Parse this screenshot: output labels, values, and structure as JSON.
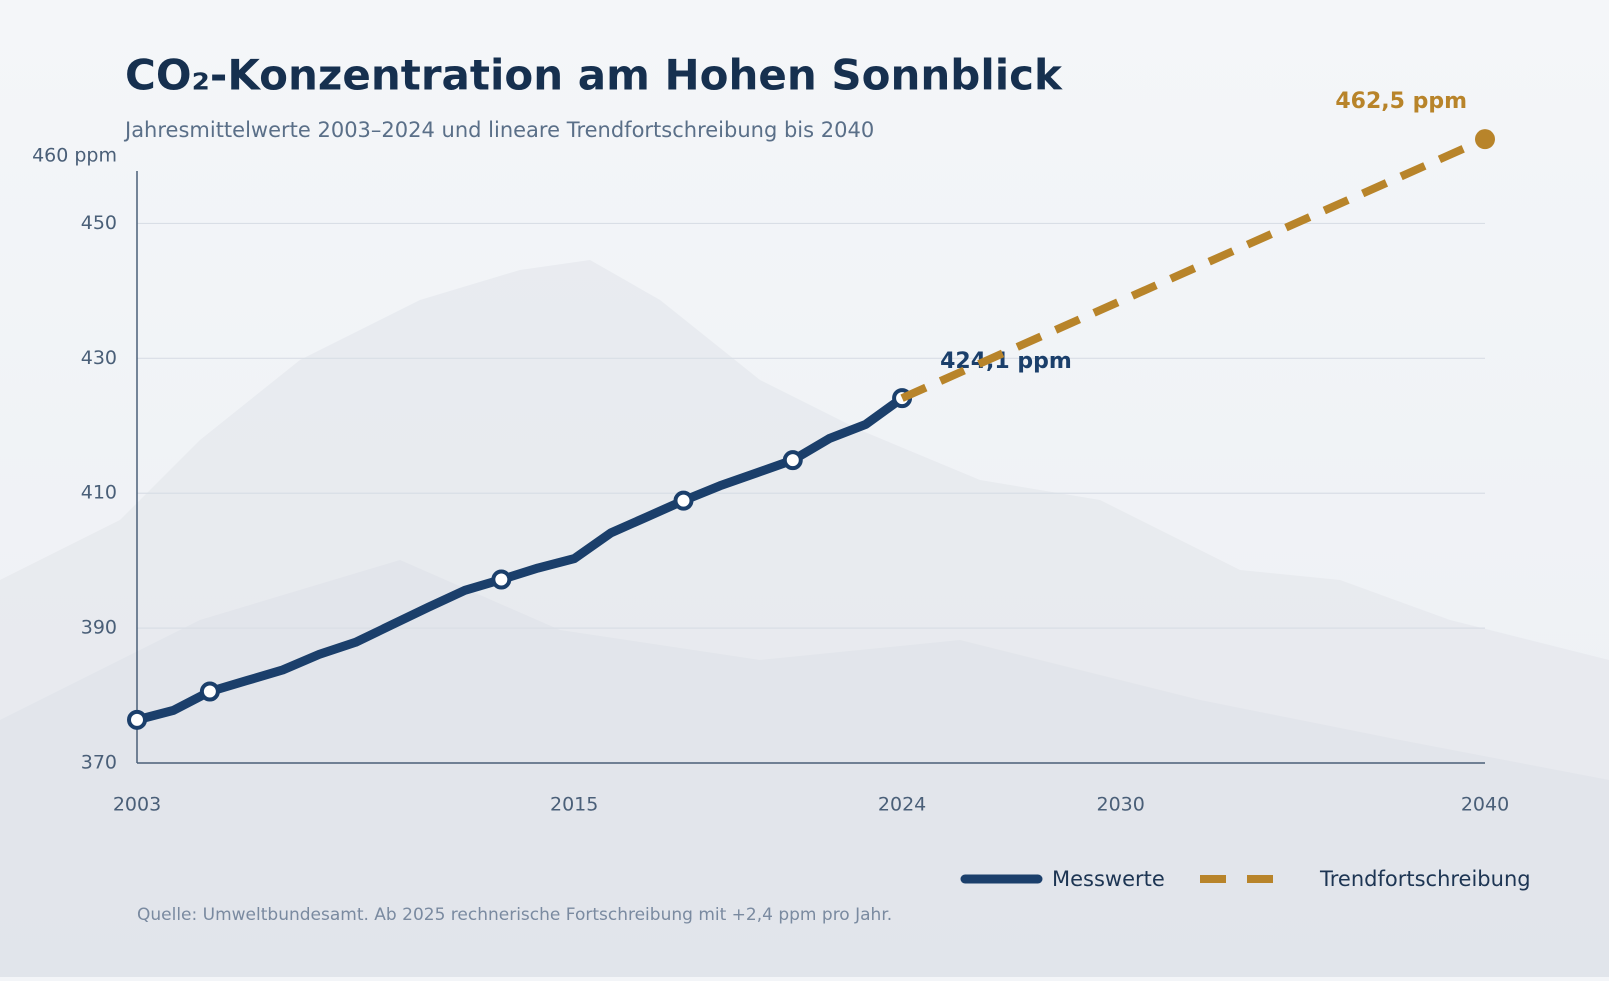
{
  "chart_data": {
    "type": "line",
    "title": "CO₂-Konzentration am Hohen Sonnblick",
    "subtitle": "Jahresmittelwerte 2003–2024 und lineare Trendfortschreibung bis 2040",
    "source": "Quelle: Umweltbundesamt. Ab 2025 rechnerische Fortschreibung mit +2,4 ppm pro Jahr.",
    "xlim": [
      2003,
      2040
    ],
    "xticks": [
      2003,
      2015,
      2024,
      2030,
      2040
    ],
    "ylim": [
      370,
      460
    ],
    "yticks": [
      370,
      390,
      410,
      430,
      450,
      {
        "value": 460,
        "label": "460 ppm"
      }
    ],
    "grid": true,
    "legend": "bottom-right",
    "series": [
      {
        "name": "Messwerte",
        "color": "#1b3f6b",
        "style": "solid",
        "x": [
          2003,
          2004,
          2005,
          2006,
          2007,
          2008,
          2009,
          2010,
          2011,
          2012,
          2013,
          2014,
          2015,
          2016,
          2017,
          2018,
          2019,
          2020,
          2021,
          2022,
          2023,
          2024
        ],
        "values": [
          376.4,
          377.8,
          380.6,
          382.2,
          383.8,
          386.1,
          387.9,
          390.5,
          393.1,
          395.6,
          397.2,
          398.9,
          400.3,
          404.1,
          406.5,
          408.9,
          411.1,
          413.0,
          414.9,
          418.1,
          420.2,
          424.1
        ],
        "value_labels": [
          null,
          null,
          null,
          null,
          null,
          null,
          null,
          null,
          null,
          null,
          null,
          null,
          null,
          null,
          null,
          null,
          null,
          null,
          null,
          null,
          null,
          "424,1 ppm"
        ]
      },
      {
        "name": "Trendfortschreibung",
        "color": "#b8842a",
        "style": "dashed",
        "x": [
          2024,
          2040
        ],
        "values": [
          424.1,
          462.5
        ],
        "value_labels": [
          null,
          "462,5 ppm"
        ]
      }
    ]
  }
}
